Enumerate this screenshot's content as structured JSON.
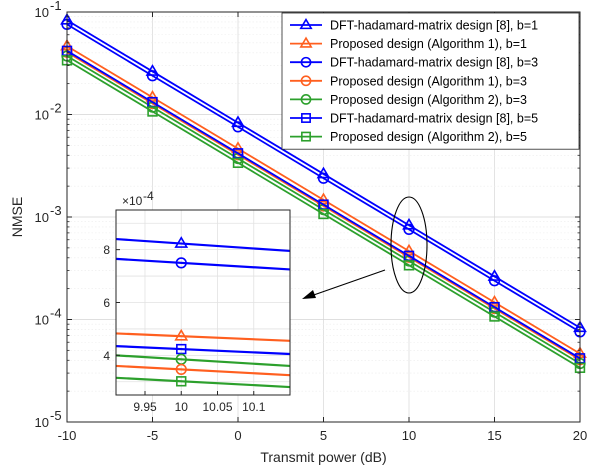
{
  "chart_data": {
    "type": "line",
    "xlabel": "Transmit power (dB)",
    "ylabel": "NMSE",
    "xlim": [
      -10,
      20
    ],
    "ylim": [
      1e-05,
      0.1
    ],
    "yscale": "log",
    "xticks": [
      -10,
      -5,
      0,
      5,
      10,
      15,
      20
    ],
    "xtick_labels": [
      "-10",
      "-5",
      "0",
      "5",
      "10",
      "15",
      "20"
    ],
    "ytick_labels": [
      {
        "base": "10",
        "exp": "-5"
      },
      {
        "base": "10",
        "exp": "-4"
      },
      {
        "base": "10",
        "exp": "-3"
      },
      {
        "base": "10",
        "exp": "-2"
      },
      {
        "base": "10",
        "exp": "-1"
      }
    ],
    "grid": true,
    "legend_position": "top-right",
    "x": [
      -10,
      -5,
      0,
      5,
      10,
      15,
      20
    ],
    "series": [
      {
        "name": "DFT-hadamard-matrix design [8], b=1",
        "color": "#0000ff",
        "marker": "triangle",
        "values": [
          0.0831,
          0.0263,
          0.00831,
          0.00263,
          0.000831,
          0.000263,
          8.31e-05
        ]
      },
      {
        "name": "Proposed design (Algorithm 1), b=1",
        "color": "#ff5f1f",
        "marker": "triangle",
        "values": [
          0.0465,
          0.0147,
          0.00465,
          0.00147,
          0.000465,
          0.000147,
          4.65e-05
        ]
      },
      {
        "name": "DFT-hadamard-matrix design [8], b=3",
        "color": "#0000ff",
        "marker": "circle",
        "values": [
          0.0757,
          0.0239,
          0.00757,
          0.00239,
          0.000757,
          0.000239,
          7.57e-05
        ]
      },
      {
        "name": "Proposed design (Algorithm 1), b=3",
        "color": "#ff5f1f",
        "marker": "circle",
        "values": [
          0.0405,
          0.0128,
          0.00405,
          0.00128,
          0.000405,
          0.000128,
          4.05e-05
        ]
      },
      {
        "name": "Proposed design (Algorithm 2), b=3",
        "color": "#2ca02c",
        "marker": "circle",
        "values": [
          0.0372,
          0.0118,
          0.00372,
          0.00118,
          0.000372,
          0.000118,
          3.72e-05
        ]
      },
      {
        "name": "DFT-hadamard-matrix design [8], b=5",
        "color": "#0000ff",
        "marker": "square",
        "values": [
          0.0418,
          0.0132,
          0.00418,
          0.00132,
          0.000418,
          0.000132,
          4.18e-05
        ]
      },
      {
        "name": "Proposed design (Algorithm 2), b=5",
        "color": "#2ca02c",
        "marker": "square",
        "values": [
          0.0338,
          0.0107,
          0.00338,
          0.00107,
          0.000338,
          0.000107,
          3.38e-05
        ]
      }
    ],
    "inset": {
      "xlim": [
        9.91,
        10.15
      ],
      "ylim": [
        2.5,
        9.5
      ],
      "xticks": [
        9.95,
        10,
        10.05,
        10.1
      ],
      "xtick_labels": [
        "9.95",
        "10",
        "10.05",
        "10.1"
      ],
      "yticks": [
        4,
        6,
        8
      ],
      "ytick_labels": [
        "4",
        "6",
        "8"
      ],
      "y_multiplier": {
        "base": "×10",
        "exp": "-4"
      },
      "grid": true,
      "marker_x": 10,
      "series_lines": [
        {
          "color": "#0000ff",
          "marker": "triangle",
          "y_start": 8.4,
          "y_end": 7.95
        },
        {
          "color": "#0000ff",
          "marker": "circle",
          "y_start": 7.65,
          "y_end": 7.25
        },
        {
          "color": "#ff5f1f",
          "marker": "triangle",
          "y_start": 4.83,
          "y_end": 4.55
        },
        {
          "color": "#0000ff",
          "marker": "square",
          "y_start": 4.35,
          "y_end": 4.05
        },
        {
          "color": "#2ca02c",
          "marker": "circle",
          "y_start": 4.0,
          "y_end": 3.6
        },
        {
          "color": "#ff5f1f",
          "marker": "circle",
          "y_start": 3.6,
          "y_end": 3.25
        },
        {
          "color": "#2ca02c",
          "marker": "square",
          "y_start": 3.15,
          "y_end": 2.8
        }
      ]
    },
    "annotations": [
      {
        "type": "ellipse",
        "around_x": 10
      },
      {
        "type": "arrow",
        "from": "ellipse",
        "to": "inset"
      }
    ]
  }
}
